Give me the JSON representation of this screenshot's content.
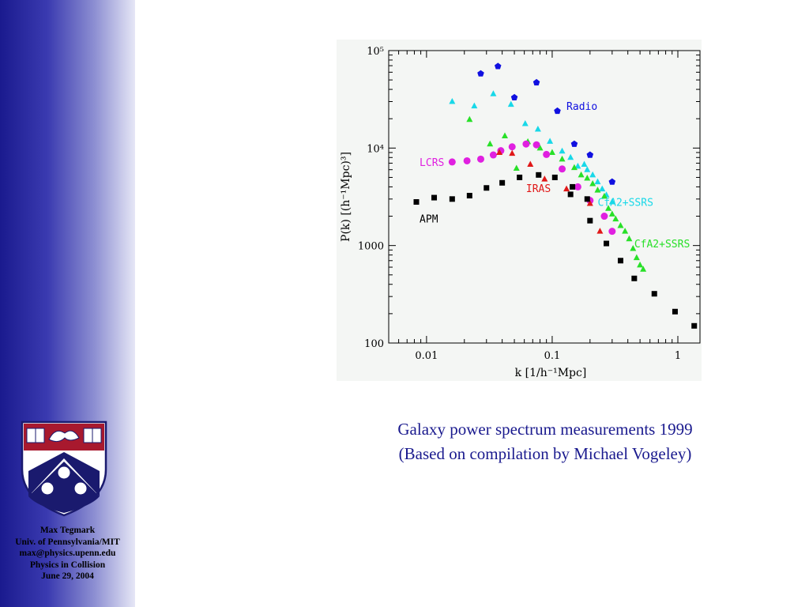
{
  "sidebar": {
    "author": "Max Tegmark",
    "affiliation": "Univ. of Pennsylvania/MIT",
    "email": "max@physics.upenn.edu",
    "talk": "Physics in Collision",
    "date": "June 29, 2004"
  },
  "caption": {
    "line1": "Galaxy power spectrum measurements 1999",
    "line2": "(Based on compilation by Michael Vogeley)"
  },
  "chart_data": {
    "type": "scatter",
    "x_scale": "log",
    "y_scale": "log",
    "xlim": [
      0.005,
      1.5
    ],
    "ylim": [
      100,
      100000
    ],
    "xlabel": "k [1/h⁻¹Mpc]",
    "ylabel": "P(k) [(h⁻¹Mpc)³]",
    "x_ticks": [
      {
        "value": 0.01,
        "label": "0.01"
      },
      {
        "value": 0.1,
        "label": "0.1"
      },
      {
        "value": 1,
        "label": "1"
      }
    ],
    "y_ticks": [
      {
        "value": 100,
        "label": "100"
      },
      {
        "value": 1000,
        "label": "1000"
      },
      {
        "value": 10000,
        "label": "10⁴"
      },
      {
        "value": 100000,
        "label": "10⁵"
      }
    ],
    "series": [
      {
        "name": "Radio",
        "color": "#1010e0",
        "marker": "pentagon",
        "points": [
          [
            0.027,
            58000
          ],
          [
            0.037,
            69000
          ],
          [
            0.05,
            33000
          ],
          [
            0.075,
            47000
          ],
          [
            0.11,
            24000
          ],
          [
            0.15,
            11000
          ],
          [
            0.2,
            8500
          ],
          [
            0.3,
            4500
          ]
        ]
      },
      {
        "name": "CfA2+SSRS",
        "color": "#18d8e8",
        "marker": "triangle",
        "points": [
          [
            0.016,
            30000
          ],
          [
            0.024,
            27000
          ],
          [
            0.034,
            36000
          ],
          [
            0.047,
            28000
          ],
          [
            0.061,
            17800
          ],
          [
            0.077,
            15600
          ],
          [
            0.096,
            11700
          ],
          [
            0.12,
            9300
          ],
          [
            0.14,
            8000
          ],
          [
            0.16,
            6500
          ],
          [
            0.18,
            6800
          ],
          [
            0.19,
            6000
          ],
          [
            0.21,
            5300
          ],
          [
            0.23,
            4500
          ],
          [
            0.25,
            3800
          ],
          [
            0.27,
            3300
          ],
          [
            0.3,
            2800
          ]
        ]
      },
      {
        "name": "CfA2+SSRS",
        "color": "#28e028",
        "marker": "triangle",
        "points": [
          [
            0.022,
            19600
          ],
          [
            0.032,
            11000
          ],
          [
            0.042,
            13300
          ],
          [
            0.052,
            6200
          ],
          [
            0.064,
            11600
          ],
          [
            0.08,
            10000
          ],
          [
            0.1,
            9000
          ],
          [
            0.12,
            7700
          ],
          [
            0.15,
            6300
          ],
          [
            0.17,
            5300
          ],
          [
            0.19,
            4900
          ],
          [
            0.21,
            4300
          ],
          [
            0.23,
            3700
          ],
          [
            0.26,
            3200
          ],
          [
            0.28,
            2400
          ],
          [
            0.3,
            2100
          ],
          [
            0.32,
            1870
          ],
          [
            0.35,
            1600
          ],
          [
            0.38,
            1400
          ],
          [
            0.41,
            1170
          ],
          [
            0.44,
            930
          ],
          [
            0.47,
            750
          ],
          [
            0.5,
            630
          ],
          [
            0.53,
            570
          ]
        ]
      },
      {
        "name": "LCRS",
        "color": "#e020e0",
        "marker": "circle",
        "points": [
          [
            0.016,
            7200
          ],
          [
            0.021,
            7400
          ],
          [
            0.027,
            7700
          ],
          [
            0.034,
            8500
          ],
          [
            0.039,
            9400
          ],
          [
            0.048,
            10300
          ],
          [
            0.062,
            11000
          ],
          [
            0.075,
            10800
          ],
          [
            0.09,
            8600
          ],
          [
            0.12,
            6100
          ],
          [
            0.16,
            4000
          ],
          [
            0.2,
            2900
          ],
          [
            0.26,
            2000
          ],
          [
            0.3,
            1400
          ]
        ]
      },
      {
        "name": "IRAS",
        "color": "#e01818",
        "marker": "triangle",
        "points": [
          [
            0.038,
            9000
          ],
          [
            0.048,
            8800
          ],
          [
            0.067,
            6800
          ],
          [
            0.087,
            4800
          ],
          [
            0.13,
            3800
          ],
          [
            0.2,
            2700
          ],
          [
            0.24,
            1400
          ]
        ]
      },
      {
        "name": "APM",
        "color": "#000000",
        "marker": "square",
        "points": [
          [
            0.0083,
            2800
          ],
          [
            0.0115,
            3100
          ],
          [
            0.016,
            3000
          ],
          [
            0.022,
            3250
          ],
          [
            0.03,
            3900
          ],
          [
            0.04,
            4400
          ],
          [
            0.055,
            5000
          ],
          [
            0.078,
            5300
          ],
          [
            0.105,
            5000
          ],
          [
            0.145,
            4000
          ],
          [
            0.14,
            3350
          ],
          [
            0.19,
            3000
          ],
          [
            0.2,
            1800
          ],
          [
            0.27,
            1050
          ],
          [
            0.35,
            700
          ],
          [
            0.45,
            460
          ],
          [
            0.65,
            320
          ],
          [
            0.95,
            210
          ],
          [
            1.35,
            150
          ]
        ]
      }
    ],
    "annotations": [
      {
        "text": "Radio",
        "color": "#1010e0",
        "x": 0.13,
        "y": 27000
      },
      {
        "text": "LCRS",
        "color": "#e020e0",
        "x": 0.0088,
        "y": 7200
      },
      {
        "text": "IRAS",
        "color": "#e01818",
        "x": 0.062,
        "y": 3900
      },
      {
        "text": "CfA2+SSRS",
        "color": "#18d8e8",
        "x": 0.23,
        "y": 2800
      },
      {
        "text": "APM",
        "color": "#000000",
        "x": 0.0088,
        "y": 1900
      },
      {
        "text": "CfA2+SSRS",
        "color": "#28e028",
        "x": 0.45,
        "y": 1050
      }
    ]
  }
}
